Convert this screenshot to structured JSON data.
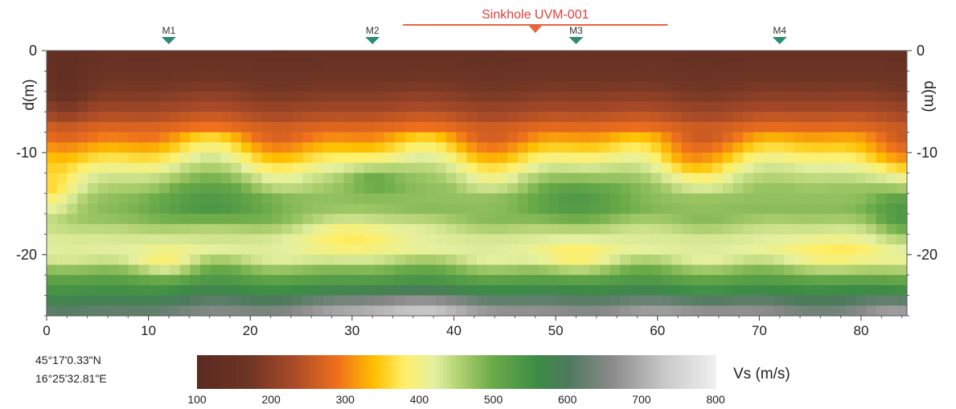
{
  "chart_data": {
    "type": "heatmap",
    "title": "",
    "xlabel": "",
    "ylabel_left": "d(m)",
    "ylabel_right": "d(m)",
    "xlim": [
      0,
      84.5
    ],
    "ylim": [
      -26,
      0
    ],
    "xticks": [
      0,
      10,
      20,
      30,
      40,
      50,
      60,
      70,
      80
    ],
    "yticks": [
      0,
      -10,
      -20
    ],
    "markers": [
      {
        "label": "M1",
        "x": 12
      },
      {
        "label": "M2",
        "x": 32
      },
      {
        "label": "M3",
        "x": 52
      },
      {
        "label": "M4",
        "x": 72
      }
    ],
    "sinkhole": {
      "label": "Sinkhole UVM-001",
      "x_start": 35,
      "x_end": 61,
      "x_center": 48
    },
    "colorbar": {
      "label": "Vs (m/s)",
      "min": 100,
      "max": 800,
      "ticks": [
        100,
        200,
        300,
        400,
        500,
        600,
        700,
        800
      ],
      "stops": [
        {
          "v": 100,
          "color": "#5a2a22"
        },
        {
          "v": 170,
          "color": "#6e3524"
        },
        {
          "v": 230,
          "color": "#a84a28"
        },
        {
          "v": 290,
          "color": "#f0701c"
        },
        {
          "v": 340,
          "color": "#ffc000"
        },
        {
          "v": 380,
          "color": "#fff06a"
        },
        {
          "v": 420,
          "color": "#e4f0a0"
        },
        {
          "v": 460,
          "color": "#a8cc6a"
        },
        {
          "v": 500,
          "color": "#6aaa48"
        },
        {
          "v": 560,
          "color": "#3c8c46"
        },
        {
          "v": 600,
          "color": "#4c7a5c"
        },
        {
          "v": 660,
          "color": "#8a8a8a"
        },
        {
          "v": 730,
          "color": "#c8c8c8"
        },
        {
          "v": 800,
          "color": "#f0f0f0"
        }
      ]
    },
    "velocity_profile": [
      {
        "z": 0,
        "v": 140
      },
      {
        "z": -2,
        "v": 160
      },
      {
        "z": -4,
        "v": 185
      },
      {
        "z": -6,
        "v": 230
      },
      {
        "z": -8,
        "v": 290
      },
      {
        "z": -10,
        "v": 360
      },
      {
        "z": -12,
        "v": 430
      },
      {
        "z": -14,
        "v": 470
      },
      {
        "z": -16,
        "v": 480
      },
      {
        "z": -18,
        "v": 430
      },
      {
        "z": -20,
        "v": 420
      },
      {
        "z": -22,
        "v": 510
      },
      {
        "z": -24,
        "v": 570
      },
      {
        "z": -26,
        "v": 640
      }
    ],
    "features": [
      {
        "x": 16,
        "z": -15,
        "rx": 6,
        "rz": 2.5,
        "dv": 60
      },
      {
        "x": 32,
        "z": -12.5,
        "rx": 3,
        "rz": 1.5,
        "dv": 60
      },
      {
        "x": 52,
        "z": -14.5,
        "rx": 5,
        "rz": 2.5,
        "dv": 60
      },
      {
        "x": 84,
        "z": -16,
        "rx": 3,
        "rz": 3,
        "dv": 60
      },
      {
        "x": 30,
        "z": -18,
        "rx": 5,
        "rz": 2,
        "dv": -55
      },
      {
        "x": 12,
        "z": -21,
        "rx": 3,
        "rz": 1.5,
        "dv": -60
      },
      {
        "x": 52,
        "z": -20.5,
        "rx": 4,
        "rz": 1.6,
        "dv": -60
      },
      {
        "x": 78,
        "z": -20.5,
        "rx": 6,
        "rz": 2,
        "dv": -60
      },
      {
        "x": 0,
        "z": -14,
        "rx": 3,
        "rz": 2.5,
        "dv": -90
      },
      {
        "x": 2,
        "z": -4,
        "rx": 2,
        "rz": 3,
        "dv": -40
      },
      {
        "x": 36,
        "z": -25.5,
        "rx": 14,
        "rz": 1.8,
        "dv": 90
      },
      {
        "x": 64,
        "z": -25.5,
        "rx": 8,
        "rz": 1.5,
        "dv": 60
      },
      {
        "x": 84,
        "z": -25.5,
        "rx": 4,
        "rz": 1.5,
        "dv": 70
      },
      {
        "x": 82,
        "z": -10.5,
        "rx": 4,
        "rz": 2.5,
        "dv": -40
      },
      {
        "x": 62,
        "z": -11,
        "rx": 3,
        "rz": 2,
        "dv": -35
      }
    ],
    "coordinates": {
      "lat": "45°17'0.33\"N",
      "lon": "16°25'32.81\"E"
    }
  }
}
